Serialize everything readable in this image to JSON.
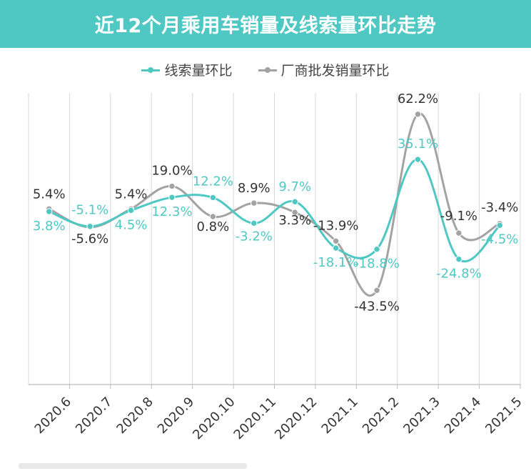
{
  "title": "近12个月乘用车销量及线索量环比走势",
  "colors": {
    "header": "#4fc8c4",
    "series1": "#4fc8c4",
    "series2": "#a3a3a3",
    "label2": "#333333"
  },
  "chart_data": {
    "type": "line",
    "title": "近12个月乘用车销量及线索量环比走势",
    "categories": [
      "2020.6",
      "2020.7",
      "2020.8",
      "2020.9",
      "2020.10",
      "2020.11",
      "2020.12",
      "2021.1",
      "2021.2",
      "2021.3",
      "2021.4",
      "2021.5"
    ],
    "series": [
      {
        "name": "线索量环比",
        "values": [
          3.8,
          -5.1,
          4.5,
          12.3,
          12.2,
          -3.2,
          9.7,
          -18.1,
          -18.8,
          35.1,
          -24.8,
          -4.5
        ],
        "labels": [
          "3.8%",
          "-5.1%",
          "4.5%",
          "12.3%",
          "12.2%",
          "-3.2%",
          "9.7%",
          "-18.1%",
          "-18.8%",
          "35.1%",
          "-24.8%",
          "-4.5%"
        ]
      },
      {
        "name": "厂商批发销量环比",
        "values": [
          5.4,
          -5.6,
          5.4,
          19.0,
          0.8,
          8.9,
          3.3,
          -13.9,
          -43.5,
          62.2,
          -9.1,
          -3.4
        ],
        "labels": [
          "5.4%",
          "-5.6%",
          "5.4%",
          "19.0%",
          "0.8%",
          "8.9%",
          "3.3%",
          "-13.9%",
          "-43.5%",
          "62.2%",
          "-9.1%",
          "-3.4%"
        ]
      }
    ],
    "xlabel": "",
    "ylabel": "",
    "ylim": [
      -100,
      75
    ],
    "grid": "vertical",
    "legend": "top-center"
  }
}
